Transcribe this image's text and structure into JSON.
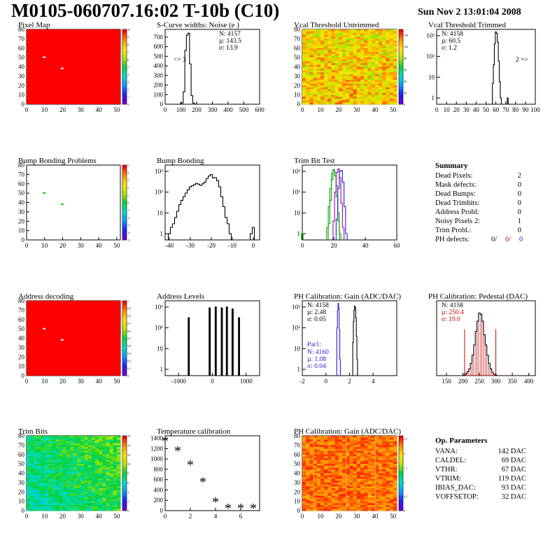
{
  "header": {
    "title": "M0105-060707.16:02 T-10b (C10)",
    "date": "Sun Nov  2 13:01:04 2008"
  },
  "chart_data": [
    {
      "id": "pixel-map",
      "type": "heatmap",
      "title": "Pixel Map",
      "xlim": [
        0,
        52
      ],
      "ylim": [
        0,
        80
      ],
      "xticks": [
        0,
        10,
        20,
        30,
        40,
        50
      ],
      "yticks": [
        0,
        10,
        20,
        30,
        40,
        50,
        60,
        70,
        80
      ],
      "zlim": [
        0,
        10
      ],
      "zticks": [
        0,
        1,
        2,
        3,
        4,
        5,
        6,
        7,
        8,
        9,
        10
      ],
      "fill": "uniform-high",
      "dead_pixels": [
        [
          9,
          50
        ],
        [
          19,
          38
        ]
      ]
    },
    {
      "id": "noise",
      "type": "histogram",
      "title": "S-Curve widths: Noise (e )",
      "xlim": [
        0,
        600
      ],
      "ylim": [
        0,
        780
      ],
      "xticks": [
        0,
        100,
        200,
        300,
        400,
        500,
        600
      ],
      "yticks": [
        0,
        100,
        200,
        300,
        400,
        500,
        600,
        700
      ],
      "bins": [
        [
          100,
          2
        ],
        [
          110,
          15
        ],
        [
          120,
          130
        ],
        [
          130,
          560
        ],
        [
          140,
          720
        ],
        [
          150,
          740
        ],
        [
          160,
          420
        ],
        [
          170,
          90
        ],
        [
          180,
          12
        ],
        [
          190,
          2
        ]
      ],
      "bin_width": 10,
      "stats": {
        "n": "N: 4157",
        "mu": "µ: 143.5",
        "sigma": "σ: 13.9"
      },
      "annotation": "<= 3"
    },
    {
      "id": "vcal-untrimmed",
      "type": "heatmap",
      "title": "Vcal Threshold Untrimmed",
      "xlim": [
        0,
        52
      ],
      "ylim": [
        0,
        80
      ],
      "xticks": [
        0,
        10,
        20,
        30,
        40,
        50
      ],
      "yticks": [
        0,
        10,
        20,
        30,
        40,
        50,
        60,
        70,
        80
      ],
      "zlim": [
        0,
        130
      ],
      "zticks": [
        0,
        20,
        40,
        60,
        80,
        100,
        120
      ],
      "fill": "noisy-orange"
    },
    {
      "id": "vcal-trimmed",
      "type": "histogram",
      "title": "Vcal Threshold Trimmed",
      "log_y": true,
      "xlim": [
        0,
        100
      ],
      "ylim": [
        0.5,
        2000
      ],
      "xticks": [
        0,
        10,
        20,
        30,
        40,
        50,
        60,
        70,
        80,
        90,
        100
      ],
      "bins": [
        [
          57,
          5
        ],
        [
          58,
          40
        ],
        [
          59,
          400
        ],
        [
          60,
          1500
        ],
        [
          61,
          1300
        ],
        [
          62,
          500
        ],
        [
          63,
          60
        ],
        [
          64,
          6
        ],
        [
          65,
          1
        ],
        [
          72,
          1
        ]
      ],
      "bin_width": 1,
      "stats": {
        "n": "N: 4158",
        "mu": "µ: 60.5",
        "sigma": "σ:  1.2"
      },
      "annotation": "2 =>"
    },
    {
      "id": "bump-problems",
      "type": "heatmap",
      "title": "Bump Bonding Problems",
      "xlim": [
        0,
        52
      ],
      "ylim": [
        0,
        80
      ],
      "xticks": [
        0,
        10,
        20,
        30,
        40,
        50
      ],
      "yticks": [
        0,
        10,
        20,
        30,
        40,
        50,
        60,
        70,
        80
      ],
      "zlim": [
        -5,
        5
      ],
      "zticks": [
        -5,
        -4,
        -3,
        -2,
        -1,
        0,
        1,
        2,
        3,
        4,
        5
      ],
      "fill": "empty",
      "marked_pixels": [
        [
          9,
          50
        ],
        [
          19,
          38
        ]
      ]
    },
    {
      "id": "bump-bonding",
      "type": "histogram",
      "title": "Bump Bonding",
      "log_y": true,
      "xlim": [
        -42,
        3
      ],
      "ylim": [
        0.5,
        2000
      ],
      "xticks": [
        -40,
        -30,
        -20,
        -10,
        0
      ],
      "bins": [
        [
          -40,
          1
        ],
        [
          -39,
          2
        ],
        [
          -38,
          3
        ],
        [
          -37,
          6
        ],
        [
          -36,
          12
        ],
        [
          -35,
          25
        ],
        [
          -34,
          40
        ],
        [
          -33,
          60
        ],
        [
          -32,
          90
        ],
        [
          -31,
          130
        ],
        [
          -30,
          180
        ],
        [
          -29,
          200
        ],
        [
          -28,
          230
        ],
        [
          -27,
          260
        ],
        [
          -26,
          240
        ],
        [
          -25,
          210
        ],
        [
          -24,
          250
        ],
        [
          -23,
          300
        ],
        [
          -22,
          450
        ],
        [
          -21,
          600
        ],
        [
          -20,
          700
        ],
        [
          -19,
          480
        ],
        [
          -18,
          500
        ],
        [
          -17,
          350
        ],
        [
          -16,
          180
        ],
        [
          -15,
          60
        ],
        [
          -14,
          20
        ],
        [
          -13,
          6
        ],
        [
          -12,
          3
        ],
        [
          -11,
          1
        ],
        [
          -1,
          1
        ],
        [
          0,
          2
        ]
      ],
      "bin_width": 1
    },
    {
      "id": "trim-bit",
      "type": "histogram",
      "title": "Trim Bit Test",
      "log_y": true,
      "xlim": [
        0,
        60
      ],
      "ylim": [
        0.5,
        2000
      ],
      "xticks": [
        0,
        20,
        40,
        60
      ],
      "series": [
        {
          "color": "#00aa00",
          "bins": [
            [
              0,
              1
            ],
            [
              16,
              2
            ],
            [
              17,
              20
            ],
            [
              18,
              150
            ],
            [
              19,
              800
            ],
            [
              20,
              1200
            ],
            [
              21,
              600
            ],
            [
              22,
              60
            ],
            [
              23,
              4
            ]
          ]
        },
        {
          "color": "#00aa00",
          "bins": [
            [
              17,
              3
            ],
            [
              18,
              40
            ],
            [
              19,
              400
            ],
            [
              20,
              1100
            ],
            [
              21,
              900
            ],
            [
              22,
              200
            ],
            [
              23,
              10
            ],
            [
              24,
              1
            ]
          ]
        },
        {
          "color": "#aa00aa",
          "bins": [
            [
              20,
              4
            ],
            [
              21,
              100
            ],
            [
              22,
              900
            ],
            [
              23,
              1300
            ],
            [
              24,
              500
            ],
            [
              25,
              30
            ],
            [
              26,
              2
            ]
          ]
        },
        {
          "color": "#2222cc",
          "bins": [
            [
              22,
              5
            ],
            [
              23,
              150
            ],
            [
              24,
              1000
            ],
            [
              25,
              1100
            ],
            [
              26,
              300
            ],
            [
              27,
              20
            ],
            [
              28,
              1
            ]
          ]
        }
      ],
      "bin_width": 1
    },
    {
      "id": "address-decoding",
      "type": "heatmap",
      "title": "Address decoding",
      "xlim": [
        0,
        52
      ],
      "ylim": [
        0,
        80
      ],
      "xticks": [
        0,
        10,
        20,
        30,
        40,
        50
      ],
      "yticks": [
        0,
        10,
        20,
        30,
        40,
        50,
        60,
        70,
        80
      ],
      "zlim": [
        0,
        1
      ],
      "zticks": [
        0,
        0.1,
        0.2,
        0.3,
        0.4,
        0.5,
        0.6,
        0.7,
        0.8,
        0.9,
        1
      ],
      "fill": "uniform-high",
      "dead_pixels": [
        [
          9,
          50
        ],
        [
          19,
          38
        ]
      ]
    },
    {
      "id": "address-levels",
      "type": "histogram",
      "title": "Address Levels",
      "log_y": true,
      "xlim": [
        -1400,
        1400
      ],
      "ylim": [
        0.5,
        2000
      ],
      "xticks": [
        -1000,
        0,
        1000
      ],
      "spikes": [
        [
          -700,
          300
        ],
        [
          -80,
          900
        ],
        [
          100,
          1000
        ],
        [
          280,
          900
        ],
        [
          430,
          1000
        ],
        [
          600,
          800
        ],
        [
          790,
          300
        ]
      ],
      "spike_width": 30
    },
    {
      "id": "ph-gain",
      "type": "histogram",
      "title": "PH Calibration: Gain (ADC/DAC)",
      "log_y": true,
      "xlim": [
        -2,
        6
      ],
      "ylim": [
        0.5,
        2000
      ],
      "xticks": [
        -2,
        0,
        2,
        4
      ],
      "series": [
        {
          "name": "Par1:",
          "color": "#2222cc",
          "bins": [
            [
              0.95,
              100
            ],
            [
              1.0,
              700
            ],
            [
              1.05,
              1500
            ],
            [
              1.1,
              900
            ],
            [
              1.15,
              80
            ],
            [
              1.2,
              3
            ]
          ]
        },
        {
          "color": "#000000",
          "bins": [
            [
              2.3,
              20
            ],
            [
              2.35,
              200
            ],
            [
              2.4,
              700
            ],
            [
              2.45,
              1100
            ],
            [
              2.5,
              900
            ],
            [
              2.55,
              300
            ],
            [
              2.6,
              40
            ],
            [
              2.65,
              3
            ]
          ]
        }
      ],
      "bin_width": 0.05,
      "stats": {
        "n": "N: 4158",
        "mu": "µ: 2.48",
        "sigma": "σ: 0.05"
      },
      "par1_stats": {
        "n": "N: 4160",
        "mu": "µ: 1.08",
        "sigma": "σ: 0.04"
      }
    },
    {
      "id": "ph-pedestal",
      "type": "histogram",
      "title": "PH Calibration: Pedestal (DAC)",
      "xlim": [
        120,
        420
      ],
      "ylim": [
        0,
        110
      ],
      "xticks": [
        150,
        200,
        250,
        300,
        350,
        400
      ],
      "bins": [
        [
          205,
          1
        ],
        [
          210,
          3
        ],
        [
          215,
          6
        ],
        [
          220,
          10
        ],
        [
          225,
          18
        ],
        [
          230,
          30
        ],
        [
          235,
          45
        ],
        [
          240,
          65
        ],
        [
          245,
          80
        ],
        [
          250,
          92
        ],
        [
          255,
          90
        ],
        [
          260,
          80
        ],
        [
          265,
          60
        ],
        [
          270,
          45
        ],
        [
          275,
          30
        ],
        [
          280,
          18
        ],
        [
          285,
          10
        ],
        [
          290,
          5
        ],
        [
          295,
          2
        ],
        [
          300,
          1
        ]
      ],
      "bin_width": 5,
      "fit_color": "#cc0000",
      "markers": [
        205,
        300
      ],
      "stats": {
        "n": "N: 4158",
        "mu": "µ: 250.4",
        "sigma": "σ: 19.0"
      }
    },
    {
      "id": "trim-bits",
      "type": "heatmap",
      "title": "Trim Bits",
      "xlim": [
        0,
        52
      ],
      "ylim": [
        0,
        80
      ],
      "xticks": [
        0,
        10,
        20,
        30,
        40,
        50
      ],
      "yticks": [
        0,
        10,
        20,
        30,
        40,
        50,
        60,
        70,
        80
      ],
      "zlim": [
        0,
        16
      ],
      "zticks": [
        0,
        2,
        4,
        6,
        8,
        10,
        12,
        14,
        16
      ],
      "fill": "noisy-green"
    },
    {
      "id": "temperature",
      "type": "scatter",
      "title": "Temperature calibration",
      "xlim": [
        0,
        7.5
      ],
      "ylim": [
        0,
        1450
      ],
      "xticks": [
        0,
        2,
        4,
        6
      ],
      "yticks": [
        0,
        200,
        400,
        600,
        800,
        1000,
        1200,
        1400
      ],
      "points": [
        [
          0,
          1340
        ],
        [
          1,
          1150
        ],
        [
          2,
          880
        ],
        [
          3,
          550
        ],
        [
          4,
          160
        ],
        [
          5,
          40
        ],
        [
          6,
          40
        ],
        [
          7,
          40
        ]
      ]
    },
    {
      "id": "ph-gain-map",
      "type": "heatmap",
      "title": "PH Calibration: Gain (ADC/DAC)",
      "xlim": [
        0,
        52
      ],
      "ylim": [
        0,
        80
      ],
      "xticks": [
        0,
        10,
        20,
        30,
        40,
        50
      ],
      "yticks": [
        0,
        10,
        20,
        30,
        40,
        50,
        60,
        70,
        80
      ],
      "zlim": [
        0,
        2.6
      ],
      "zticks": [
        0,
        0.5,
        1,
        1.5,
        2,
        2.5
      ],
      "fill": "noisy-red"
    }
  ],
  "summary": {
    "title": "Summary",
    "rows": [
      {
        "label": "Dead Pixels:",
        "value": "2"
      },
      {
        "label": "Mask defects:",
        "value": "0"
      },
      {
        "label": "Dead Bumps:",
        "value": "0"
      },
      {
        "label": "Dead Trimbits:",
        "value": "0"
      },
      {
        "label": "Address Probl:",
        "value": "0"
      },
      {
        "label": "Noisy Pixels 2:",
        "value": "1"
      },
      {
        "label": "Trim Probl.:",
        "value": "0"
      }
    ],
    "ph_row": {
      "label": "PH defects:",
      "values": [
        {
          "text": "0/",
          "color": "#000000"
        },
        {
          "text": "0/",
          "color": "#cc0000"
        },
        {
          "text": "0",
          "color": "#2222cc"
        }
      ]
    }
  },
  "op_parameters": {
    "title": "Op. Parameters",
    "rows": [
      {
        "label": "VANA:",
        "value": "142 DAC"
      },
      {
        "label": "CALDEL:",
        "value": "69 DAC"
      },
      {
        "label": "VTHR:",
        "value": "67 DAC"
      },
      {
        "label": "VTRIM:",
        "value": "119 DAC"
      },
      {
        "label": "IBIAS_DAC:",
        "value": "93 DAC"
      },
      {
        "label": "VOFFSETOP:",
        "value": "32 DAC"
      }
    ]
  }
}
